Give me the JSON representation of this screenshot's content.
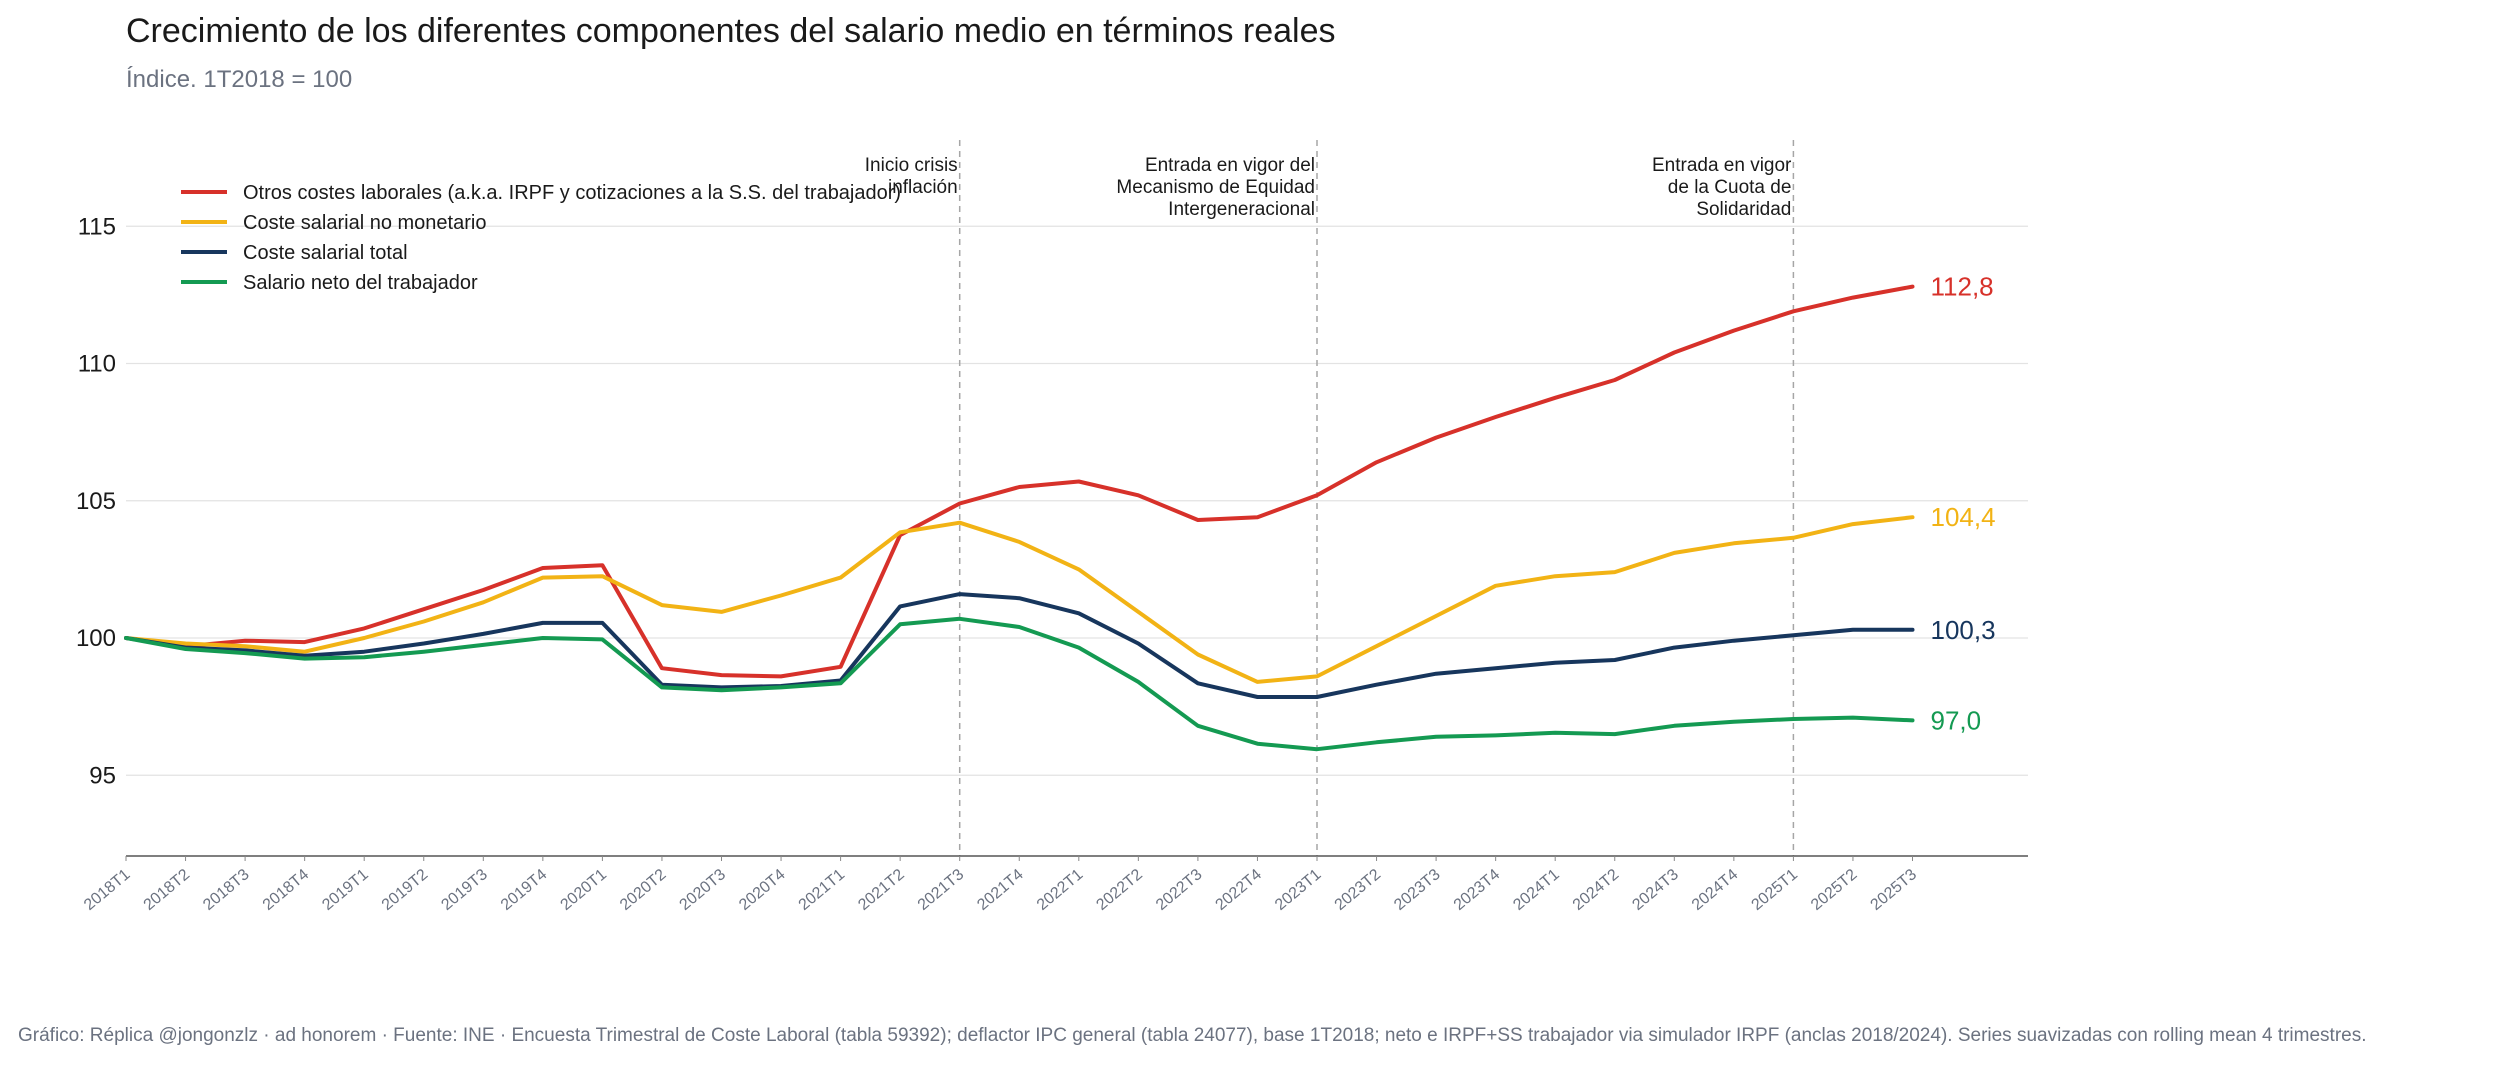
{
  "header": {
    "title": "Crecimiento de los diferentes componentes del salario medio en términos reales",
    "subtitle": "Índice. 1T2018 = 100"
  },
  "footer": {
    "text": "Gráfico: Réplica @jongonzlz · ad honorem  ·  Fuente: INE · Encuesta Trimestral de Coste Laboral (tabla 59392); deflactor IPC general (tabla 24077), base 1T2018; neto e IRPF+SS trabajador via simulador IRPF (anclas 2018/2024). Series suavizadas con rolling mean 4 trimestres."
  },
  "chart_data": {
    "type": "line",
    "title": "Crecimiento de los diferentes componentes del salario medio en términos reales",
    "subtitle": "Índice. 1T2018 = 100",
    "xlabel": "",
    "ylabel": "",
    "ylim": [
      92,
      118
    ],
    "yticks": [
      95,
      100,
      105,
      110,
      115
    ],
    "ytick_labels": [
      "95",
      "100",
      "105",
      "110",
      "115"
    ],
    "grid": "horizontal",
    "legend_position": "top-left",
    "categories": [
      "2018T1",
      "2018T2",
      "2018T3",
      "2018T4",
      "2019T1",
      "2019T2",
      "2019T3",
      "2019T4",
      "2020T1",
      "2020T2",
      "2020T3",
      "2020T4",
      "2021T1",
      "2021T2",
      "2021T3",
      "2021T4",
      "2022T1",
      "2022T2",
      "2022T3",
      "2022T4",
      "2023T1",
      "2023T2",
      "2023T3",
      "2023T4",
      "2024T1",
      "2024T2",
      "2024T3",
      "2024T4",
      "2025T1",
      "2025T2",
      "2025T3"
    ],
    "series": [
      {
        "name": "Otros costes laborales (a.k.a. IRPF y cotizaciones a la S.S. del trabajador)",
        "color": "#d7312a",
        "end_label": "112,8",
        "values": [
          100.0,
          99.7,
          99.9,
          99.85,
          100.35,
          101.05,
          101.75,
          102.55,
          102.65,
          98.9,
          98.65,
          98.6,
          98.95,
          103.75,
          104.9,
          105.5,
          105.7,
          105.2,
          104.3,
          104.4,
          105.2,
          106.4,
          107.3,
          108.05,
          108.75,
          109.4,
          110.4,
          111.2,
          111.9,
          112.4,
          112.8
        ]
      },
      {
        "name": "Coste salarial no monetario",
        "color": "#f2b315",
        "end_label": "104,4",
        "values": [
          100.0,
          99.8,
          99.7,
          99.5,
          100.0,
          100.6,
          101.3,
          102.2,
          102.25,
          101.2,
          100.95,
          101.55,
          102.2,
          103.85,
          104.2,
          103.5,
          102.5,
          100.95,
          99.4,
          98.4,
          98.6,
          99.7,
          100.8,
          101.9,
          102.25,
          102.4,
          103.1,
          103.45,
          103.65,
          104.15,
          104.4
        ]
      },
      {
        "name": "Coste salarial total",
        "color": "#17365d",
        "end_label": "100,3",
        "values": [
          100.0,
          99.65,
          99.55,
          99.35,
          99.5,
          99.8,
          100.15,
          100.55,
          100.55,
          98.3,
          98.2,
          98.25,
          98.45,
          101.15,
          101.6,
          101.45,
          100.9,
          99.8,
          98.35,
          97.85,
          97.85,
          98.3,
          98.7,
          98.9,
          99.1,
          99.2,
          99.65,
          99.9,
          100.1,
          100.3,
          100.3
        ]
      },
      {
        "name": "Salario neto del trabajador",
        "color": "#149a52",
        "end_label": "97,0",
        "values": [
          100.0,
          99.6,
          99.45,
          99.25,
          99.3,
          99.5,
          99.75,
          100.0,
          99.95,
          98.2,
          98.1,
          98.2,
          98.35,
          100.5,
          100.7,
          100.4,
          99.65,
          98.4,
          96.8,
          96.15,
          95.95,
          96.2,
          96.4,
          96.45,
          96.55,
          96.5,
          96.8,
          96.95,
          97.05,
          97.1,
          97.0
        ]
      }
    ],
    "vlines": [
      {
        "at": "2021T3",
        "label_lines": [
          "Inicio crisis",
          "inflación"
        ]
      },
      {
        "at": "2023T1",
        "label_lines": [
          "Entrada en vigor del",
          "Mecanismo de Equidad",
          "Intergeneracional"
        ]
      },
      {
        "at": "2025T1",
        "label_lines": [
          "Entrada en vigor",
          "de la Cuota de",
          "Solidaridad"
        ]
      }
    ]
  }
}
